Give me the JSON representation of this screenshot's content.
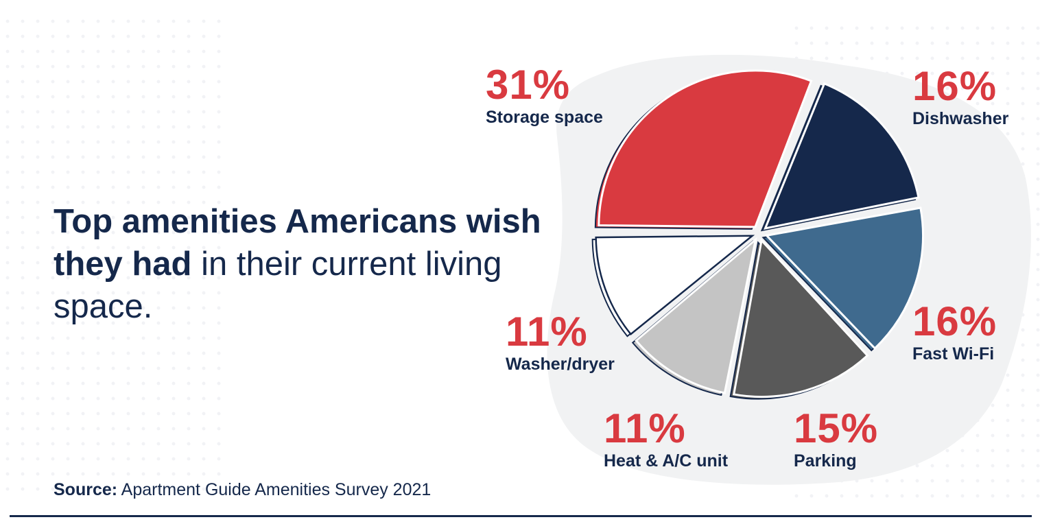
{
  "title": {
    "bold_part": "Top amenities Americans wish they had",
    "regular_part": " in their current living space."
  },
  "source": {
    "label": "Source:",
    "text": " Apartment Guide Amenities Survey 2021"
  },
  "colors": {
    "red": "#d93a40",
    "navy": "#15284b",
    "steel_blue": "#3f6a8e",
    "dark_gray": "#595959",
    "light_gray": "#c4c4c4",
    "white": "#ffffff",
    "background_blob": "#f1f2f3"
  },
  "chart_data": {
    "type": "pie",
    "slices": [
      {
        "label": "Storage space",
        "value": 31,
        "display": "31%",
        "color": "#d93a40"
      },
      {
        "label": "Dishwasher",
        "value": 16,
        "display": "16%",
        "color": "#15284b"
      },
      {
        "label": "Fast Wi-Fi",
        "value": 16,
        "display": "16%",
        "color": "#3f6a8e"
      },
      {
        "label": "Parking",
        "value": 15,
        "display": "15%",
        "color": "#595959"
      },
      {
        "label": "Heat & A/C unit",
        "value": 11,
        "display": "11%",
        "color": "#c4c4c4"
      },
      {
        "label": "Washer/dryer",
        "value": 11,
        "display": "11%",
        "color": "#ffffff"
      }
    ]
  }
}
